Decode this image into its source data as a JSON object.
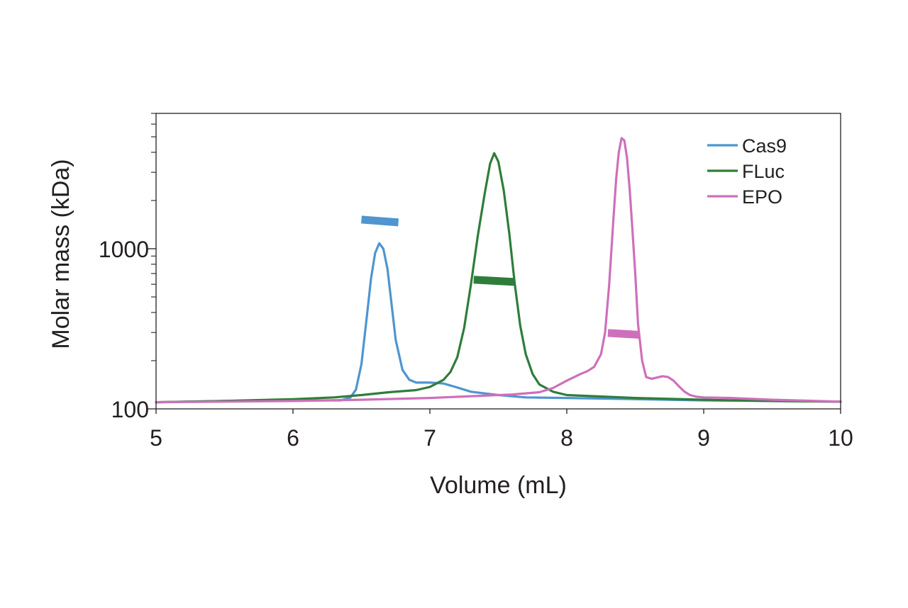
{
  "chart_data": {
    "type": "line",
    "title": "",
    "xlabel": "Volume (mL)",
    "ylabel": "Molar mass (kDa)",
    "xlim": [
      5,
      10
    ],
    "ylim": [
      100,
      7000
    ],
    "yscale": "log",
    "x_ticks": [
      5,
      6,
      7,
      8,
      9,
      10
    ],
    "x_tick_labels": [
      "5",
      "6",
      "7",
      "8",
      "9",
      "10"
    ],
    "y_tick_labels": [
      {
        "value": 100,
        "label": "100"
      },
      {
        "value": 1000,
        "label": "1000"
      }
    ],
    "grid": false,
    "legend_position": "top-right",
    "series": [
      {
        "name": "Cas9",
        "color": "#4f95cf",
        "trace": {
          "x": [
            5.0,
            5.5,
            6.0,
            6.2,
            6.35,
            6.42,
            6.46,
            6.5,
            6.54,
            6.57,
            6.6,
            6.63,
            6.66,
            6.69,
            6.72,
            6.75,
            6.8,
            6.85,
            6.9,
            6.95,
            7.0,
            7.05,
            7.1,
            7.2,
            7.3,
            7.5,
            7.7,
            8.0,
            8.5,
            9.0,
            9.5,
            10.0
          ],
          "y": [
            110,
            112,
            114,
            113,
            113,
            118,
            132,
            190,
            380,
            650,
            940,
            1080,
            1000,
            750,
            450,
            270,
            175,
            152,
            146,
            146,
            146,
            145,
            144,
            136,
            128,
            122,
            118,
            117,
            115,
            113,
            112,
            111
          ]
        },
        "molar_mass": {
          "x": [
            6.5,
            6.77
          ],
          "y": [
            1520,
            1460
          ]
        }
      },
      {
        "name": "FLuc",
        "color": "#2f7d3a",
        "trace": {
          "x": [
            5.0,
            5.5,
            6.0,
            6.3,
            6.5,
            6.7,
            6.9,
            7.0,
            7.1,
            7.15,
            7.2,
            7.25,
            7.3,
            7.35,
            7.4,
            7.44,
            7.47,
            7.5,
            7.54,
            7.58,
            7.62,
            7.66,
            7.7,
            7.75,
            7.8,
            7.9,
            8.0,
            8.5,
            9.0,
            9.5,
            10.0
          ],
          "y": [
            110,
            112,
            115,
            118,
            122,
            127,
            131,
            137,
            152,
            170,
            210,
            320,
            600,
            1200,
            2200,
            3400,
            3950,
            3500,
            2300,
            1250,
            600,
            330,
            220,
            165,
            142,
            128,
            122,
            117,
            114,
            112,
            111
          ]
        },
        "molar_mass": {
          "x": [
            7.32,
            7.62
          ],
          "y": [
            640,
            620
          ]
        }
      },
      {
        "name": "EPO",
        "color": "#cf6fbb",
        "trace": {
          "x": [
            5.0,
            5.5,
            6.0,
            6.5,
            7.0,
            7.3,
            7.6,
            7.8,
            7.9,
            8.0,
            8.1,
            8.15,
            8.2,
            8.25,
            8.28,
            8.31,
            8.34,
            8.36,
            8.38,
            8.4,
            8.42,
            8.44,
            8.46,
            8.48,
            8.5,
            8.52,
            8.55,
            8.58,
            8.62,
            8.66,
            8.7,
            8.74,
            8.78,
            8.82,
            8.86,
            8.9,
            8.95,
            9.0,
            9.2,
            9.5,
            10.0
          ],
          "y": [
            110,
            111,
            112,
            114,
            117,
            120,
            123,
            127,
            135,
            150,
            165,
            172,
            183,
            220,
            300,
            600,
            1500,
            2700,
            4000,
            4900,
            4750,
            3700,
            2300,
            1300,
            700,
            340,
            200,
            158,
            154,
            157,
            160,
            158,
            150,
            138,
            128,
            122,
            119,
            118,
            117,
            114,
            111
          ]
        },
        "molar_mass": {
          "x": [
            8.3,
            8.53
          ],
          "y": [
            298,
            290
          ]
        }
      }
    ]
  }
}
